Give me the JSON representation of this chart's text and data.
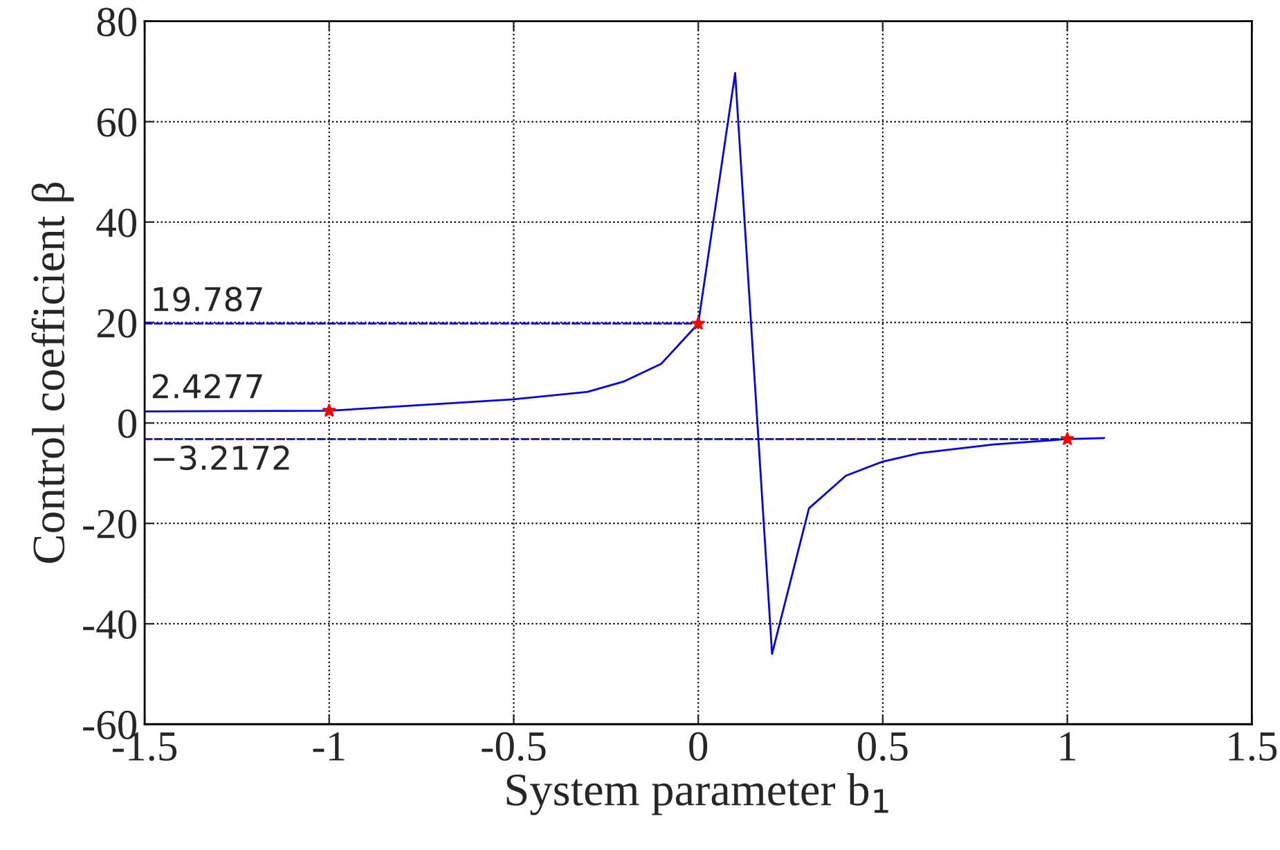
{
  "chart_data": {
    "type": "line",
    "xlabel": "System parameter b$_{1}$",
    "ylabel": "Control coefficient β",
    "xlim": [
      -1.5,
      1.5
    ],
    "xticks": [
      -1.5,
      -1,
      -0.5,
      0,
      0.5,
      1,
      1.5
    ],
    "ylim": [
      -60,
      80
    ],
    "yticks": [
      -60,
      -40,
      -20,
      0,
      20,
      40,
      60,
      80
    ],
    "grid": true,
    "legend": false,
    "series": [
      {
        "color": "#0000ff",
        "line_style": "solid",
        "x": [
          -1.5,
          -1,
          -0.5,
          -0.3,
          -0.2,
          -0.1,
          0,
          0.1,
          0.2,
          0.3,
          0.4,
          0.5,
          0.6,
          0.8,
          1,
          1.1
        ],
        "values": [
          2.3,
          2.4277,
          4.7,
          6.2,
          8.3,
          11.8,
          19.787,
          69.7,
          -46,
          -17,
          -10.5,
          -7.7,
          -6,
          -4.3,
          -3.2172,
          -3.0
        ]
      },
      {
        "color": "#0000ff",
        "line_style": "dashed",
        "x": [
          -1.5,
          0
        ],
        "values": [
          19.787,
          19.787
        ]
      },
      {
        "color": "#0000ff",
        "line_style": "dashed",
        "x": [
          -1.5,
          1
        ],
        "values": [
          -3.2172,
          -3.2172
        ]
      },
      {
        "type": "scatter",
        "color": "#ff0000",
        "marker": "star",
        "x": [
          -1,
          0,
          1
        ],
        "values": [
          2.4277,
          19.787,
          -3.2172
        ]
      }
    ],
    "annotations": [
      {
        "text": "19.787",
        "y": 19.787
      },
      {
        "text": "2.4277",
        "y": 2.4277
      },
      {
        "text": "−3.2172",
        "y": -3.2172
      }
    ]
  }
}
